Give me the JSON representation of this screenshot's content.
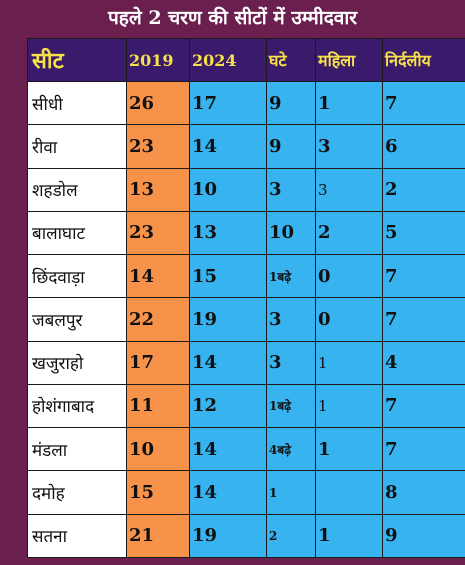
{
  "title": "पहले 2 चरण की सीटों में उम्मीदवार",
  "chart_data": {
    "type": "table",
    "columns": [
      "सीट",
      "2019",
      "2024",
      "घटे",
      "महिला",
      "निर्दलीय"
    ],
    "rows": [
      {
        "seat": "सीधी",
        "y2019": "26",
        "y2024": "17",
        "change": "9",
        "women": "1",
        "independent": "7"
      },
      {
        "seat": "रीवा",
        "y2019": "23",
        "y2024": "14",
        "change": "9",
        "women": "3",
        "independent": "6"
      },
      {
        "seat": "शहडोल",
        "y2019": "13",
        "y2024": "10",
        "change": "3",
        "women": "3",
        "independent": "2"
      },
      {
        "seat": "बालाघाट",
        "y2019": "23",
        "y2024": "13",
        "change": "10",
        "women": "2",
        "independent": "5"
      },
      {
        "seat": "छिंदवाड़ा",
        "y2019": "14",
        "y2024": "15",
        "change": "1बढ़े",
        "women": "0",
        "independent": "7"
      },
      {
        "seat": "जबलपुर",
        "y2019": "22",
        "y2024": "19",
        "change": "3",
        "women": "0",
        "independent": "7"
      },
      {
        "seat": "खजुराहो",
        "y2019": "17",
        "y2024": "14",
        "change": "3",
        "women": "1",
        "independent": "4"
      },
      {
        "seat": "होशंगाबाद",
        "y2019": "11",
        "y2024": "12",
        "change": "1बढ़े",
        "women": "1",
        "independent": "7"
      },
      {
        "seat": "मंडला",
        "y2019": "10",
        "y2024": "14",
        "change": "4बढ़े",
        "women": "1",
        "independent": "7"
      },
      {
        "seat": "दमोह",
        "y2019": "15",
        "y2024": "14",
        "change": "1",
        "women": "",
        "independent": "8"
      },
      {
        "seat": "सतना",
        "y2019": "21",
        "y2024": "19",
        "change": "2",
        "women": "1",
        "independent": "9"
      }
    ]
  },
  "colors": {
    "background": "#6b1f4e",
    "header_bg": "#3a1a6b",
    "header_text": "#f6e14a",
    "col_2019": "#f7924a",
    "col_blue": "#37b3f0"
  }
}
